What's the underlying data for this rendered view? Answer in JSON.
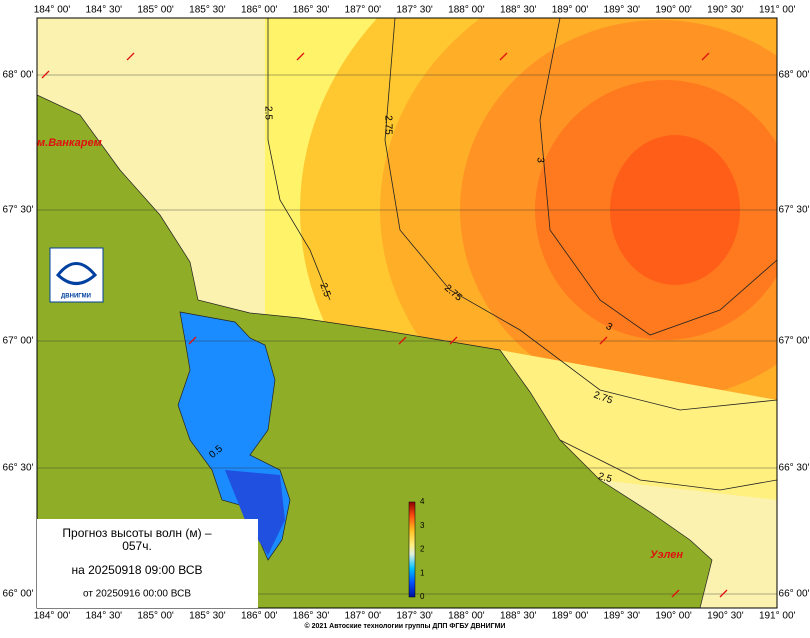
{
  "map": {
    "longitude_labels": [
      "184° 00'",
      "184° 30'",
      "185° 00'",
      "185° 30'",
      "186° 00'",
      "186° 30'",
      "187° 00'",
      "187° 30'",
      "188° 00'",
      "188° 30'",
      "189° 00'",
      "189° 30'",
      "190° 00'",
      "190° 30'",
      "191° 00'"
    ],
    "latitude_labels": [
      "68° 00'",
      "67° 30'",
      "67° 00'",
      "66° 30'",
      "66° 00'"
    ],
    "contour_labels": [
      "2.5",
      "2.75",
      "3",
      "2.5",
      "2.75",
      "3",
      "2.75",
      "2.5",
      "0.5"
    ],
    "places": [
      "м.Ванкарем",
      "Уэлен"
    ],
    "logo": "ДВНИГМИ"
  },
  "legend": {
    "title": "Прогноз высоты волн (м) –",
    "title_suffix": "057ч.",
    "valid": "на 20250918 09:00 ВСВ",
    "issued": "от 20250916 00:00 ВСВ"
  },
  "colorbar": {
    "ticks": [
      "0",
      "1",
      "2",
      "3",
      "4"
    ]
  },
  "footer": "© 2021 Автоские технологии группы ДПП ФГБУ ДВНИГМИ"
}
